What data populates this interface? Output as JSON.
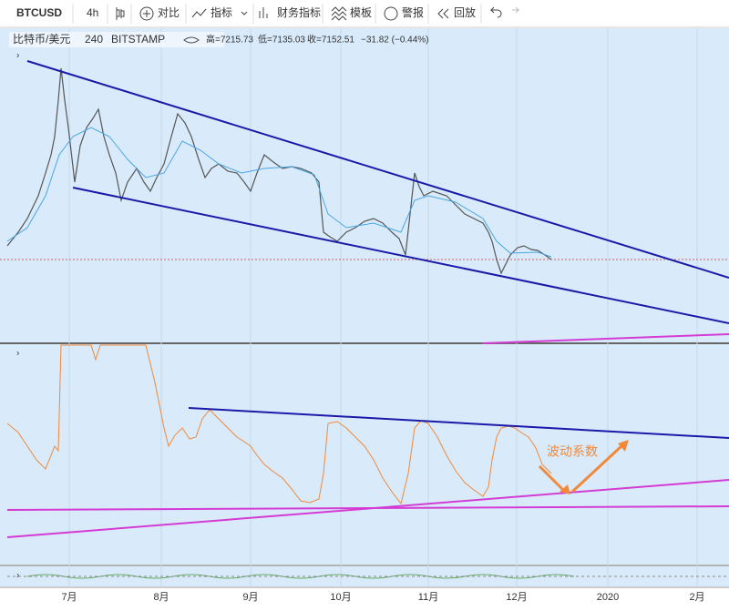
{
  "toolbar": {
    "symbol": "BTCUSD",
    "interval": "4h",
    "items": [
      "对比",
      "指标",
      "财务指标",
      "模板",
      "警报",
      "回放"
    ]
  },
  "legend": {
    "name": "比特币/美元",
    "interval": "240",
    "exchange": "BITSTAMP",
    "high": "高=7215.73",
    "low": "低=7135.03",
    "close": "收=7152.51",
    "change": "−31.82 (−0.44%)"
  },
  "annotation": "波动系数",
  "time_axis": [
    "7月",
    "8月",
    "9月",
    "10月",
    "11月",
    "12月",
    "2020",
    "2月"
  ]
}
